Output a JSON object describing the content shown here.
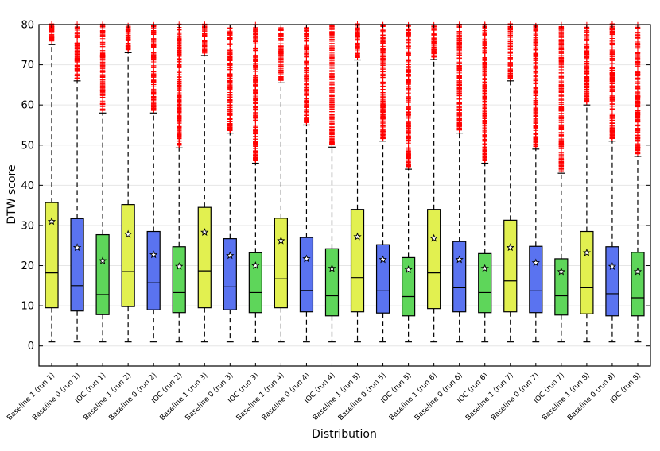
{
  "chart_data": {
    "type": "box",
    "title": "",
    "xlabel": "Distribution",
    "ylabel": "DTW score",
    "ylim": [
      -5,
      80
    ],
    "yticks": [
      0,
      10,
      20,
      30,
      40,
      50,
      60,
      70,
      80
    ],
    "grid": "horizontal",
    "colors": {
      "Baseline 1": "#e2f050",
      "Baseline 0": "#5a73f0",
      "IOC": "#5ed65a",
      "outlier": "#ff0000",
      "median": "#000000"
    },
    "categories": [
      "Baseline 1 (run 1)",
      "Baseline 0 (run 1)",
      "IOC (run 1)",
      "Baseline 1 (run 2)",
      "Baseline 0 (run 2)",
      "IOC (run 2)",
      "Baseline 1 (run 3)",
      "Baseline 0 (run 3)",
      "IOC (run 3)",
      "Baseline 1 (run 4)",
      "Baseline 0 (run 4)",
      "IOC (run 4)",
      "Baseline 1 (run 5)",
      "Baseline 0 (run 5)",
      "IOC (run 5)",
      "Baseline 1 (run 6)",
      "Baseline 0 (run 6)",
      "IOC (run 6)",
      "Baseline 1 (run 7)",
      "Baseline 0 (run 7)",
      "IOC (run 7)",
      "Baseline 1 (run 8)",
      "Baseline 0 (run 8)",
      "IOC (run 8)"
    ],
    "groups": [
      "Baseline 1",
      "Baseline 0",
      "IOC",
      "Baseline 1",
      "Baseline 0",
      "IOC",
      "Baseline 1",
      "Baseline 0",
      "IOC",
      "Baseline 1",
      "Baseline 0",
      "IOC",
      "Baseline 1",
      "Baseline 0",
      "IOC",
      "Baseline 1",
      "Baseline 0",
      "IOC",
      "Baseline 1",
      "Baseline 0",
      "IOC",
      "Baseline 1",
      "Baseline 0",
      "IOC"
    ],
    "whisker_low": [
      1,
      1,
      1,
      1,
      1,
      1,
      1,
      1,
      1,
      1,
      1,
      1,
      1,
      1,
      1,
      1,
      1,
      1,
      1,
      1,
      1,
      1,
      1,
      1
    ],
    "q1": [
      9.5,
      8.7,
      7.8,
      9.8,
      9.0,
      8.3,
      9.5,
      9.0,
      8.3,
      9.5,
      8.5,
      7.5,
      8.5,
      8.2,
      7.5,
      9.3,
      8.5,
      8.3,
      8.5,
      8.3,
      7.7,
      8.0,
      7.5,
      7.5
    ],
    "median": [
      18.2,
      15.0,
      12.8,
      18.5,
      15.7,
      13.3,
      18.7,
      14.7,
      13.3,
      16.7,
      13.8,
      12.5,
      17.0,
      13.7,
      12.3,
      18.2,
      14.5,
      13.3,
      16.2,
      13.7,
      12.5,
      14.5,
      13.0,
      12.0
    ],
    "q3": [
      35.7,
      31.7,
      27.7,
      35.2,
      28.5,
      24.7,
      34.5,
      26.7,
      23.2,
      31.8,
      27.0,
      24.2,
      34.0,
      25.2,
      22.0,
      34.0,
      26.0,
      23.0,
      31.3,
      24.8,
      21.7,
      28.5,
      24.7,
      23.3
    ],
    "whisker_high": [
      75.0,
      66.0,
      58.0,
      73.0,
      58.0,
      49.3,
      72.3,
      53.0,
      45.5,
      65.5,
      55.0,
      49.5,
      71.2,
      51.0,
      44.0,
      71.3,
      53.0,
      45.5,
      66.0,
      49.0,
      43.0,
      60.0,
      51.0,
      47.2
    ],
    "mean": [
      31.0,
      24.5,
      21.2,
      27.8,
      22.7,
      19.8,
      28.3,
      22.5,
      20.0,
      26.2,
      21.7,
      19.3,
      27.2,
      21.5,
      19.0,
      26.8,
      21.5,
      19.3,
      24.5,
      20.7,
      18.5,
      23.2,
      19.8,
      18.5
    ]
  }
}
